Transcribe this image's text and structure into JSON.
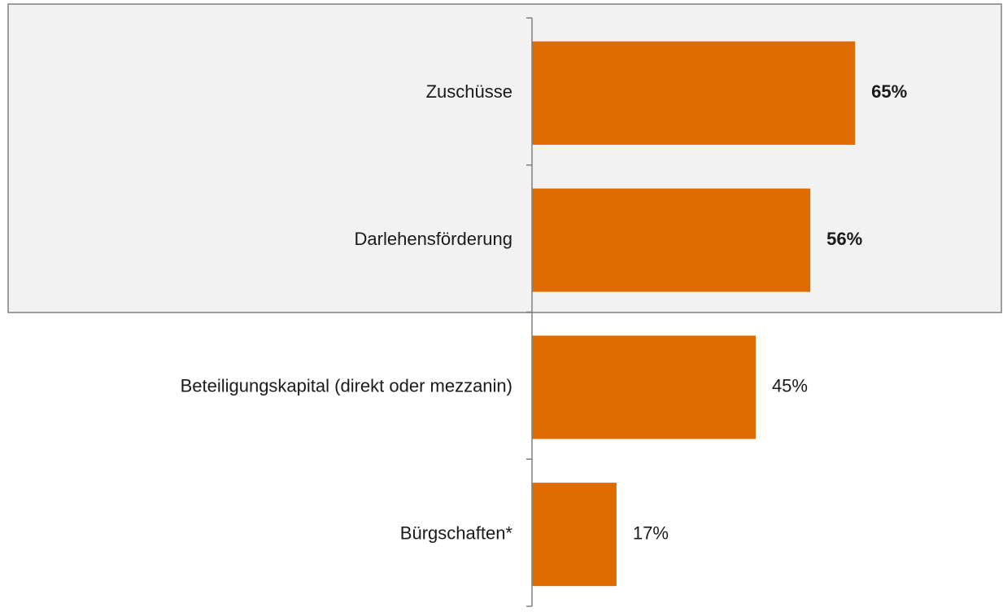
{
  "chart_data": {
    "type": "bar",
    "orientation": "horizontal",
    "categories": [
      "Zuschüsse",
      "Darlehensförderung",
      "Beteiligungskapital (direkt oder mezzanin)",
      "Bürgschaften*"
    ],
    "values": [
      65,
      56,
      45,
      17
    ],
    "value_labels": [
      "65%",
      "56%",
      "45%",
      "17%"
    ],
    "color": "#dd6b00"
  }
}
